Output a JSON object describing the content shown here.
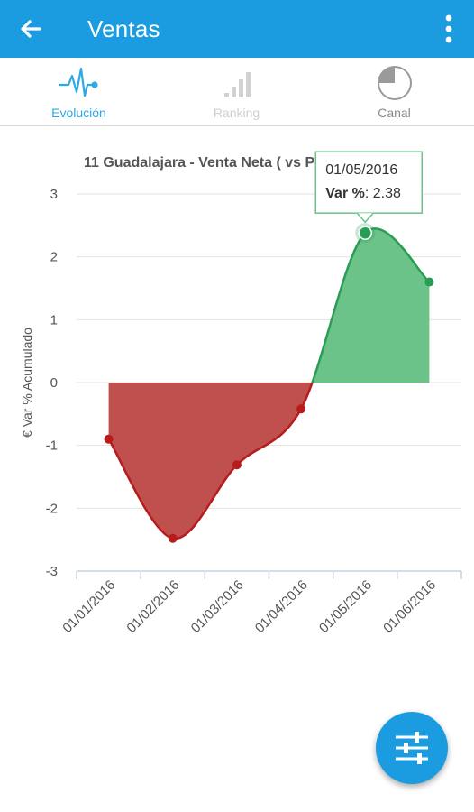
{
  "app_bar": {
    "title": "Ventas",
    "back_icon": "arrow-left-icon",
    "menu_icon": "more-vertical-icon",
    "background": "#1b9be0"
  },
  "tabs": [
    {
      "label": "Evolución",
      "icon": "pulse-line-icon",
      "state": "active",
      "color": "#2fa8e4"
    },
    {
      "label": "Ranking",
      "icon": "signal-bars-icon",
      "state": "disabled",
      "color": "#cfcfcf"
    },
    {
      "label": "Canal",
      "icon": "pie-chart-icon",
      "state": "inactive",
      "color": "#8a8a8a"
    }
  ],
  "chart_data": {
    "type": "area",
    "title": "11 Guadalajara - Venta Neta ( vs PPTO )",
    "ylabel": "€ Var % Acumulado",
    "xlabel": "",
    "ylim": [
      -3,
      3
    ],
    "yticks": [
      3,
      2,
      1,
      0,
      -1,
      -2,
      -3
    ],
    "categories": [
      "01/01/2016",
      "01/02/2016",
      "01/03/2016",
      "01/04/2016",
      "01/05/2016",
      "01/06/2016"
    ],
    "series": [
      {
        "values": [
          -0.9,
          -2.48,
          -1.31,
          -0.42,
          2.38,
          1.6
        ]
      }
    ],
    "colors": {
      "negative_fill": "#c0504d",
      "negative_line": "#b71c1c",
      "positive_fill": "#6cc38a",
      "positive_line": "#2a9d55"
    },
    "grid": true,
    "legend": "none",
    "tooltip": {
      "date": "01/05/2016",
      "label": "Var %",
      "value": "2.38"
    }
  },
  "fab": {
    "icon": "sliders-icon",
    "color": "#1b9be0"
  }
}
